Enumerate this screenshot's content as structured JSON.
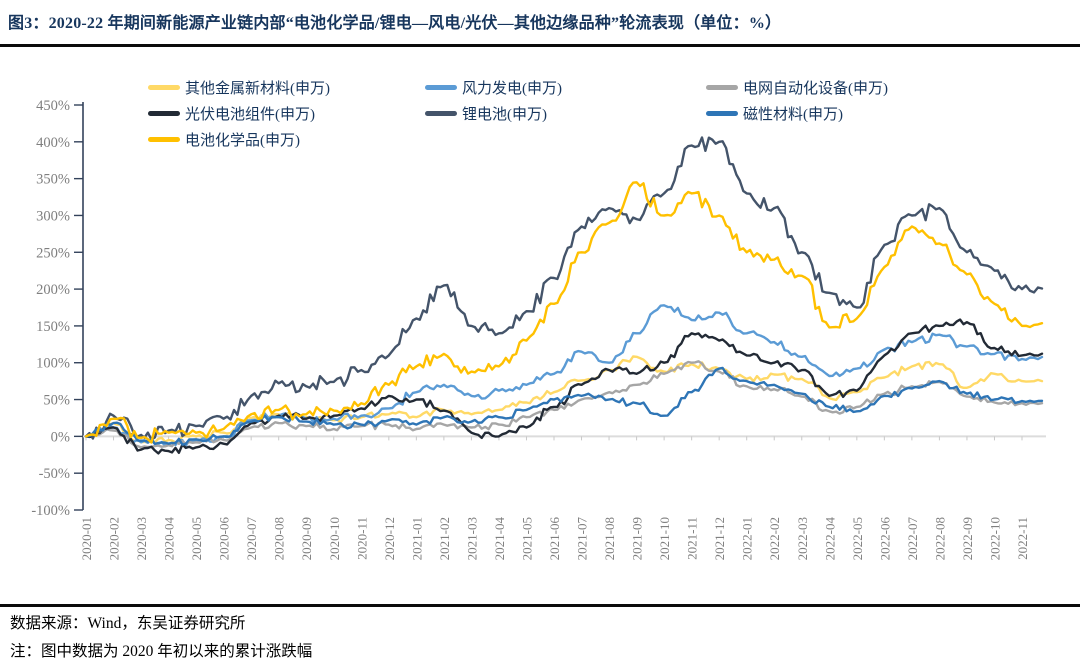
{
  "figure": {
    "title": "图3：2020-22 年期间新能源产业链内部“电池化学品/锂电—风电/光伏—其他边缘品种”轮流表现（单位：%）",
    "source": "数据来源：Wind，东吴证券研究所",
    "note": "注：图中数据为 2020 年初以来的累计涨跌幅"
  },
  "colors": {
    "title_text": "#17365D",
    "divider": "#0A0A0A",
    "axis_line": "#33425B",
    "tick_label": "#7F7F7F",
    "zero_line": "#DCDCDC",
    "month_tick": "#C8C8C8",
    "legend_text": "#17365D"
  },
  "chart_data": {
    "type": "line",
    "title": "2020-22 年期间新能源产业链内部轮流表现（累计涨跌幅，%）",
    "xlabel": "",
    "ylabel": "",
    "grid": false,
    "legend_position": "top",
    "y_axis": {
      "min": -100,
      "max": 450,
      "step": 50,
      "unit": "%",
      "tick_labels": [
        "450%",
        "400%",
        "350%",
        "300%",
        "250%",
        "200%",
        "150%",
        "100%",
        "50%",
        "0%",
        "-50%",
        "-100%"
      ]
    },
    "x": [
      "2020-01",
      "2020-02",
      "2020-03",
      "2020-04",
      "2020-05",
      "2020-06",
      "2020-07",
      "2020-08",
      "2020-09",
      "2020-10",
      "2020-11",
      "2020-12",
      "2021-01",
      "2021-02",
      "2021-03",
      "2021-04",
      "2021-05",
      "2021-06",
      "2021-07",
      "2021-08",
      "2021-09",
      "2021-10",
      "2021-11",
      "2021-12",
      "2022-01",
      "2022-02",
      "2022-03",
      "2022-04",
      "2022-05",
      "2022-06",
      "2022-07",
      "2022-08",
      "2022-09",
      "2022-10",
      "2022-11"
    ],
    "series": [
      {
        "id": "other-metal-new-materials",
        "name": "其他金属新材料(申万)",
        "color": "#FFD966",
        "values": [
          0,
          18,
          -8,
          -5,
          0,
          5,
          25,
          30,
          26,
          22,
          26,
          30,
          26,
          36,
          30,
          36,
          46,
          60,
          76,
          90,
          108,
          88,
          98,
          92,
          78,
          84,
          78,
          52,
          60,
          80,
          95,
          98,
          66,
          85,
          75
        ]
      },
      {
        "id": "wind-power",
        "name": "风力发电(申万)",
        "color": "#5B9BD5",
        "values": [
          0,
          12,
          -8,
          -10,
          -5,
          0,
          22,
          28,
          24,
          24,
          28,
          38,
          60,
          70,
          55,
          62,
          70,
          85,
          115,
          100,
          140,
          178,
          158,
          168,
          140,
          128,
          108,
          82,
          92,
          118,
          128,
          138,
          122,
          112,
          105
        ]
      },
      {
        "id": "grid-automation-equipment",
        "name": "电网自动化设备(申万)",
        "color": "#A6A6A6",
        "values": [
          0,
          8,
          -15,
          -12,
          -8,
          -5,
          12,
          18,
          14,
          10,
          14,
          16,
          10,
          16,
          12,
          16,
          26,
          36,
          50,
          60,
          70,
          85,
          100,
          88,
          68,
          64,
          54,
          34,
          40,
          58,
          68,
          74,
          54,
          46,
          45
        ]
      },
      {
        "id": "pv-cell-module",
        "name": "光伏电池组件(申万)",
        "color": "#222A35",
        "values": [
          0,
          12,
          -18,
          -20,
          -15,
          -10,
          18,
          28,
          24,
          28,
          38,
          55,
          50,
          35,
          5,
          0,
          12,
          40,
          70,
          90,
          85,
          100,
          140,
          130,
          110,
          100,
          90,
          55,
          62,
          110,
          140,
          150,
          155,
          120,
          110
        ]
      },
      {
        "id": "lithium-battery",
        "name": "锂电池(申万)",
        "color": "#44546A",
        "values": [
          0,
          28,
          2,
          8,
          14,
          24,
          55,
          72,
          68,
          74,
          90,
          110,
          160,
          205,
          150,
          140,
          170,
          215,
          285,
          310,
          295,
          330,
          395,
          400,
          330,
          310,
          250,
          195,
          175,
          260,
          300,
          310,
          250,
          225,
          200
        ]
      },
      {
        "id": "magnetic-materials",
        "name": "磁性材料(申万)",
        "color": "#2E75B6",
        "values": [
          0,
          18,
          -6,
          -10,
          -4,
          0,
          20,
          26,
          20,
          16,
          16,
          22,
          16,
          26,
          20,
          26,
          36,
          50,
          55,
          50,
          45,
          28,
          60,
          92,
          75,
          70,
          58,
          40,
          34,
          55,
          65,
          75,
          58,
          50,
          48
        ]
      },
      {
        "id": "battery-chemicals",
        "name": "电池化学品(申万)",
        "color": "#FFC000",
        "values": [
          0,
          24,
          -2,
          5,
          5,
          10,
          30,
          36,
          30,
          35,
          45,
          70,
          95,
          112,
          88,
          95,
          130,
          180,
          250,
          290,
          345,
          300,
          330,
          300,
          250,
          240,
          218,
          148,
          160,
          230,
          285,
          262,
          220,
          180,
          150
        ]
      }
    ]
  }
}
